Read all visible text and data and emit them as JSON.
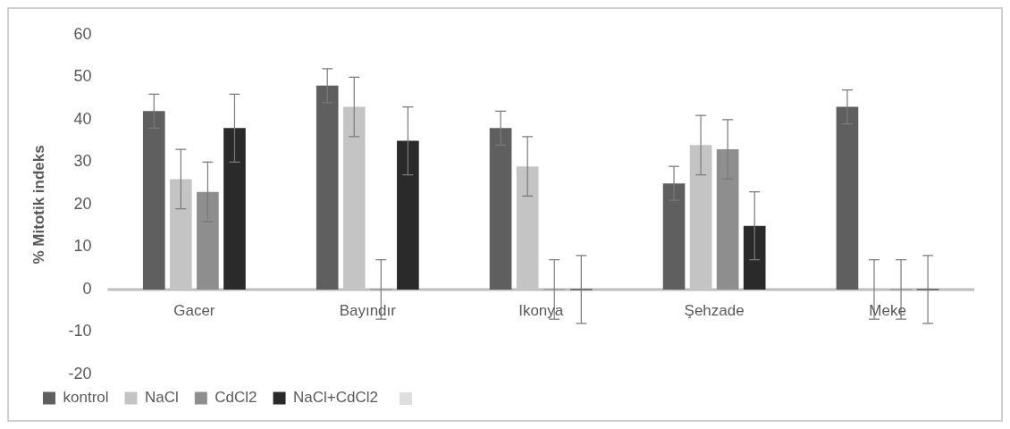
{
  "chart_data": {
    "type": "bar",
    "ylabel": "% Mitotik indeks",
    "categories": [
      "Gacer",
      "Bayındır",
      "Ikonya",
      "Şehzade",
      "Meke"
    ],
    "series": [
      {
        "name": "kontrol",
        "color": "#5f5f5f",
        "values": [
          42,
          48,
          38,
          25,
          43
        ],
        "errors": [
          4,
          4,
          4,
          4,
          4
        ]
      },
      {
        "name": "NaCl",
        "color": "#c4c4c4",
        "values": [
          26,
          43,
          29,
          34,
          0
        ],
        "errors": [
          7,
          7,
          7,
          7,
          7
        ]
      },
      {
        "name": "CdCl2",
        "color": "#8e8e8e",
        "values": [
          23,
          0,
          0,
          33,
          0
        ],
        "errors": [
          7,
          7,
          7,
          7,
          7
        ]
      },
      {
        "name": "NaCl+CdCl2",
        "color": "#2a2a2a",
        "values": [
          38,
          35,
          0,
          15,
          0
        ],
        "errors": [
          8,
          8,
          8,
          8,
          8
        ]
      }
    ],
    "ylim": [
      -20,
      60
    ],
    "yticks": [
      -20,
      -10,
      0,
      10,
      20,
      30,
      40,
      50,
      60
    ],
    "grid": false,
    "legend": "bottom"
  }
}
